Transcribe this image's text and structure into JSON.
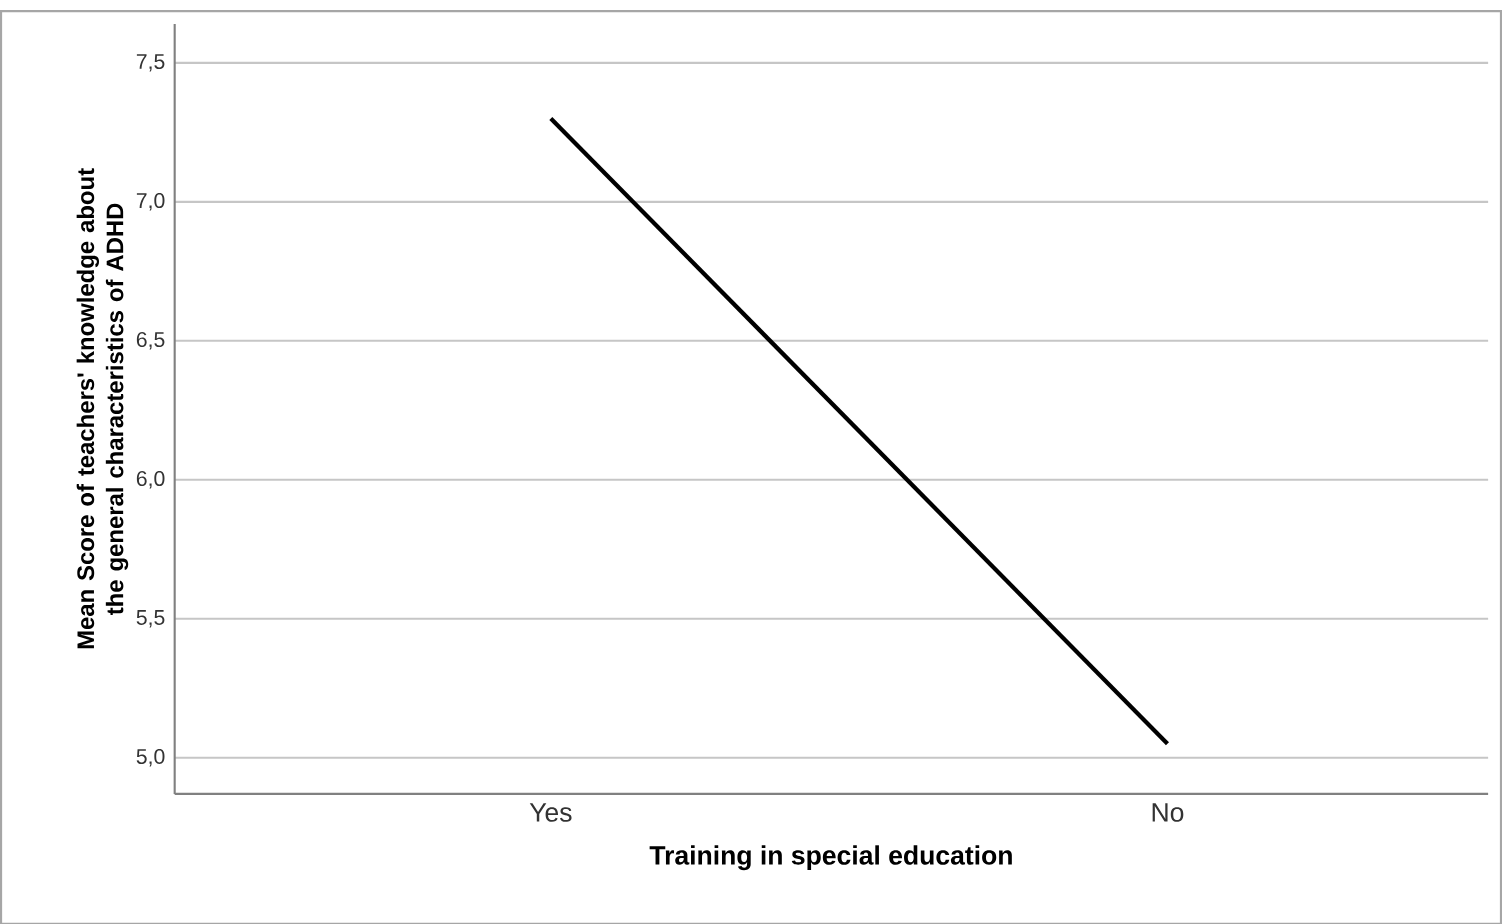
{
  "chart_data": {
    "type": "line",
    "xlabel": "Training in special education",
    "ylabel": "Mean Score of teachers' knowledge about the general characteristics of ADHD",
    "categories": [
      "Yes",
      "No"
    ],
    "series": [
      {
        "color": "#000000",
        "values": [
          7.3,
          5.05
        ]
      }
    ],
    "ylim": [
      4.87,
      7.64
    ],
    "yticks": [
      {
        "value": 5.0,
        "label": "5,0"
      },
      {
        "value": 5.5,
        "label": "5,5"
      },
      {
        "value": 6.0,
        "label": "6,0"
      },
      {
        "value": 6.5,
        "label": "6,5"
      },
      {
        "value": 7.0,
        "label": "7,0"
      },
      {
        "value": 7.5,
        "label": "7,5"
      }
    ],
    "grid": "y",
    "marker": "none",
    "line_style": "solid"
  }
}
